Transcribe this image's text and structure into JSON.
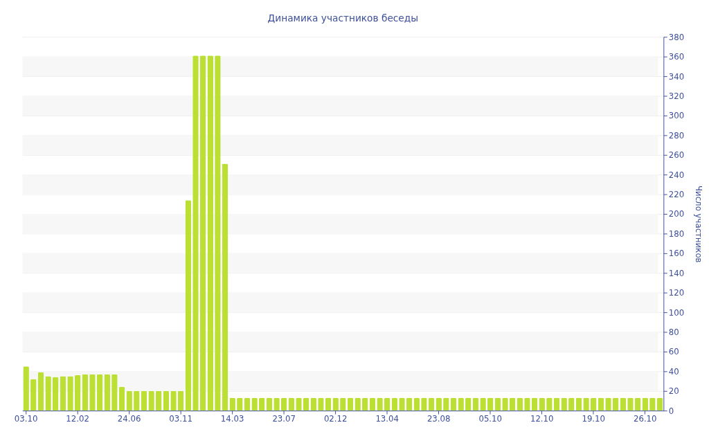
{
  "chart_data": {
    "type": "bar",
    "title": "Динамика участников беседы",
    "ylabel": "Число участников",
    "categories": [
      "03.10",
      null,
      null,
      null,
      null,
      null,
      null,
      "12.02",
      null,
      null,
      null,
      null,
      null,
      null,
      "24.06",
      null,
      null,
      null,
      null,
      null,
      null,
      "03.11",
      null,
      null,
      null,
      null,
      null,
      null,
      "14.03",
      null,
      null,
      null,
      null,
      null,
      null,
      "23.07",
      null,
      null,
      null,
      null,
      null,
      null,
      "02.12",
      null,
      null,
      null,
      null,
      null,
      null,
      "13.04",
      null,
      null,
      null,
      null,
      null,
      null,
      "23.08",
      null,
      null,
      null,
      null,
      null,
      null,
      "05.10",
      null,
      null,
      null,
      null,
      null,
      null,
      "12.10",
      null,
      null,
      null,
      null,
      null,
      null,
      "19.10",
      null,
      null,
      null,
      null,
      null,
      null,
      "26.10",
      null,
      null
    ],
    "values": [
      45,
      32,
      39,
      35,
      34,
      35,
      35,
      36,
      37,
      37,
      37,
      37,
      37,
      24,
      20,
      20,
      20,
      20,
      20,
      20,
      20,
      20,
      214,
      361,
      361,
      361,
      361,
      251,
      13,
      13,
      13,
      13,
      13,
      13,
      13,
      13,
      13,
      13,
      13,
      13,
      13,
      13,
      13,
      13,
      13,
      13,
      13,
      13,
      13,
      13,
      13,
      13,
      13,
      13,
      13,
      13,
      13,
      13,
      13,
      13,
      13,
      13,
      13,
      13,
      13,
      13,
      13,
      13,
      13,
      13,
      13,
      13,
      13,
      13,
      13,
      13,
      13,
      13,
      13,
      13,
      13,
      13,
      13,
      13,
      13,
      13,
      13
    ],
    "color": "#bbe033",
    "ylim": [
      0,
      380
    ],
    "yticks": [
      0,
      20,
      40,
      60,
      80,
      100,
      120,
      140,
      160,
      180,
      200,
      220,
      240,
      260,
      280,
      300,
      320,
      340,
      360,
      380
    ],
    "grid": "y",
    "bands": [
      {
        "axis": "y",
        "from": 20,
        "to": 40,
        "color": "#f7f7f7"
      },
      {
        "axis": "y",
        "from": 60,
        "to": 80,
        "color": "#f7f7f7"
      },
      {
        "axis": "y",
        "from": 100,
        "to": 120,
        "color": "#f7f7f7"
      },
      {
        "axis": "y",
        "from": 140,
        "to": 160,
        "color": "#f7f7f7"
      },
      {
        "axis": "y",
        "from": 180,
        "to": 200,
        "color": "#f7f7f7"
      },
      {
        "axis": "y",
        "from": 220,
        "to": 240,
        "color": "#f7f7f7"
      },
      {
        "axis": "y",
        "from": 260,
        "to": 280,
        "color": "#f7f7f7"
      },
      {
        "axis": "y",
        "from": 300,
        "to": 320,
        "color": "#f7f7f7"
      },
      {
        "axis": "y",
        "from": 340,
        "to": 360,
        "color": "#f7f7f7"
      }
    ]
  }
}
